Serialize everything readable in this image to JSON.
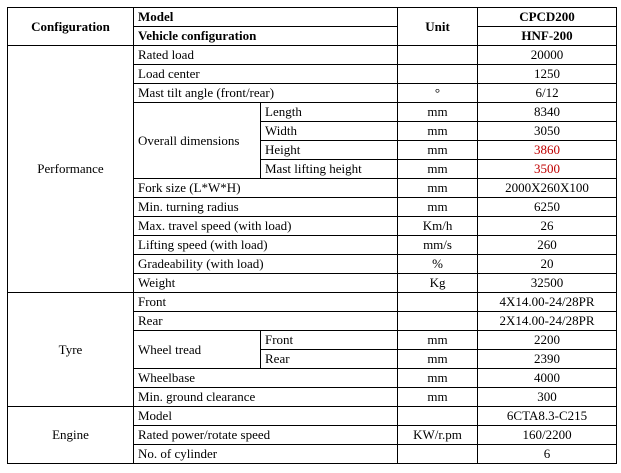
{
  "header": {
    "configuration": "Configuration",
    "model": "Model",
    "vehicle_configuration": "Vehicle configuration",
    "unit": "Unit",
    "model_value": "CPCD200",
    "vehicle_value": "HNF-200"
  },
  "sections": [
    {
      "name": "Performance",
      "rows": [
        {
          "parameter": "Rated load",
          "value": "20000"
        },
        {
          "parameter": "Load center",
          "value": "1250"
        },
        {
          "parameter": "Mast tilt angle (front/rear)",
          "unit": "°",
          "value": "6/12"
        },
        {
          "parameter": "Overall dimensions",
          "items": [
            {
              "name": "Length",
              "unit": "mm",
              "value": "8340"
            },
            {
              "name": "Width",
              "unit": "mm",
              "value": "3050"
            },
            {
              "name": "Height",
              "unit": "mm",
              "value": "3860",
              "color": "#c00000"
            },
            {
              "name": "Mast lifting height",
              "unit": "mm",
              "value": "3500",
              "color": "#c00000"
            }
          ]
        },
        {
          "parameter": "Fork size (L*W*H)",
          "unit": "mm",
          "value": "2000X260X100"
        },
        {
          "parameter": "Min. turning radius",
          "unit": "mm",
          "value": "6250"
        },
        {
          "parameter": "Max. travel speed (with load)",
          "unit": "Km/h",
          "value": "26"
        },
        {
          "parameter": "Lifting speed  (with load)",
          "unit": "mm/s",
          "value": "260"
        },
        {
          "parameter": "Gradeability (with load)",
          "unit": "%",
          "value": "20"
        },
        {
          "parameter": "Weight",
          "unit": "Kg",
          "value": "32500"
        }
      ]
    },
    {
      "name": "Tyre",
      "rows": [
        {
          "parameter": "Front",
          "value": "4X14.00-24/28PR"
        },
        {
          "parameter": "Rear",
          "value": "2X14.00-24/28PR"
        },
        {
          "parameter": "Wheel tread",
          "items": [
            {
              "name": "Front",
              "unit": "mm",
              "value": "2200"
            },
            {
              "name": "Rear",
              "unit": "mm",
              "value": "2390"
            }
          ]
        },
        {
          "parameter": "Wheelbase",
          "unit": "mm",
          "value": "4000"
        },
        {
          "parameter": "Min. ground clearance",
          "unit": "mm",
          "value": "300"
        }
      ]
    },
    {
      "name": "Engine",
      "rows": [
        {
          "parameter": "Model",
          "value": "6CTA8.3-C215"
        },
        {
          "parameter": "Rated power/rotate speed",
          "unit": "KW/r.pm",
          "value": "160/2200"
        },
        {
          "parameter": "No. of cylinder",
          "unit": "",
          "value": "6"
        }
      ]
    }
  ]
}
